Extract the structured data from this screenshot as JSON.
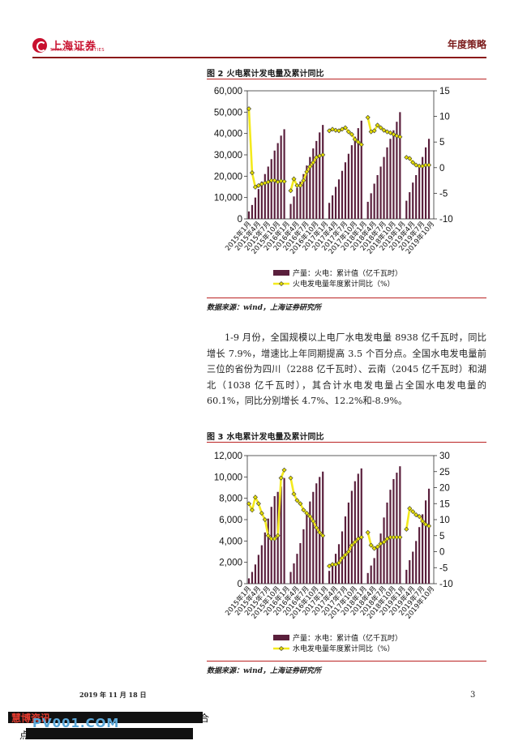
{
  "header": {
    "brand": "上海证券",
    "brand_en": "SHANGHAI SECURITIES",
    "doc_type": "年度策略"
  },
  "figures": [
    {
      "title_num": "图 2",
      "title": "火电累计发电量及累计同比",
      "source": "数据来源：wind，上海证券研究所",
      "legend": {
        "bar": "产量：火电：累计值（亿千瓦时）",
        "line": "火电发电量年度累计同比（%）"
      },
      "colors": {
        "bar": "#5a1f3c",
        "line": "#f4ea1e",
        "marker": "#e8e000"
      }
    },
    {
      "title_num": "图 3",
      "title": "水电累计发电量及累计同比",
      "source": "数据来源：wind，上海证券研究所",
      "legend": {
        "bar": "产量：水电：累计值（亿千瓦时）",
        "line": "水电发电量年度累计同比（%）"
      },
      "colors": {
        "bar": "#5a1f3c",
        "line": "#f4ea1e",
        "marker": "#e8e000"
      }
    }
  ],
  "body": {
    "paragraph": "1-9 月份，全国规模以上电厂水电发电量 8938 亿千瓦时，同比增长 7.9%，增速比上年同期提高 3.5 个百分点。全国水电发电量前三位的省份为四川（2288 亿千瓦时）、云南（2045 亿千瓦时）和湖北（1038 亿千瓦时），其合计水电发电量占全国水电发电量的 60.1%，同比分别增长 4.7%、12.2%和-8.9%。"
  },
  "footer": {
    "date": "2019 年 11 月 18 日",
    "page": "3"
  },
  "watermark": {
    "brand": "慧博资讯",
    "brand_tail": "合",
    "url": "PV001.COM",
    "point": "点"
  },
  "chart_data": [
    {
      "type": "bar",
      "x_tick_labels": [
        "2015年1月",
        "2015年4月",
        "2015年7月",
        "2015年10月",
        "2016年1月",
        "2016年4月",
        "2016年7月",
        "2016年10月",
        "2017年1月",
        "2017年4月",
        "2017年7月",
        "2017年10月",
        "2018年1月",
        "2018年4月",
        "2018年7月",
        "2018年10月",
        "2019年1月",
        "2019年4月",
        "2019年7月",
        "2019年10月"
      ],
      "x": [
        "2015-01",
        "2015-02",
        "2015-03",
        "2015-04",
        "2015-05",
        "2015-06",
        "2015-07",
        "2015-08",
        "2015-09",
        "2015-10",
        "2015-11",
        "2015-12",
        "2016-01",
        "2016-02",
        "2016-03",
        "2016-04",
        "2016-05",
        "2016-06",
        "2016-07",
        "2016-08",
        "2016-09",
        "2016-10",
        "2016-11",
        "2016-12",
        "2017-01",
        "2017-02",
        "2017-03",
        "2017-04",
        "2017-05",
        "2017-06",
        "2017-07",
        "2017-08",
        "2017-09",
        "2017-10",
        "2017-11",
        "2017-12",
        "2018-01",
        "2018-02",
        "2018-03",
        "2018-04",
        "2018-05",
        "2018-06",
        "2018-07",
        "2018-08",
        "2018-09",
        "2018-10",
        "2018-11",
        "2018-12",
        "2019-01",
        "2019-02",
        "2019-03",
        "2019-04",
        "2019-05",
        "2019-06",
        "2019-07",
        "2019-08",
        "2019-09",
        "2019-10"
      ],
      "series": [
        {
          "name": "产量：火电：累计值（亿千瓦时）",
          "axis": "left",
          "values": [
            3500,
            6500,
            10000,
            14000,
            17500,
            21000,
            24500,
            28000,
            32000,
            35500,
            39000,
            42000,
            null,
            7000,
            10500,
            14500,
            17500,
            21000,
            25000,
            29000,
            33000,
            36500,
            40500,
            44000,
            null,
            7500,
            11000,
            15000,
            18500,
            22500,
            26500,
            30500,
            34500,
            38500,
            42500,
            46000,
            null,
            8000,
            12000,
            16500,
            20500,
            24500,
            29000,
            33500,
            37500,
            41500,
            45500,
            50000,
            null,
            8500,
            12500,
            17000,
            20500,
            24500,
            29000,
            33500,
            37500,
            null
          ]
        },
        {
          "name": "火电发电量年度累计同比（%）",
          "axis": "right",
          "values": [
            11.5,
            -1,
            -3.8,
            -3.5,
            -3.2,
            -3,
            -2.8,
            -2.5,
            -2.5,
            -2.8,
            -2.6,
            -2.7,
            null,
            -4.5,
            -2.2,
            -3.5,
            -3.5,
            -2.5,
            -0.8,
            0.2,
            1,
            2,
            2.3,
            2.5,
            null,
            7.2,
            7.5,
            7.3,
            7.2,
            7.5,
            7.8,
            7,
            6.5,
            5.5,
            5,
            4.5,
            null,
            9.8,
            7,
            7.2,
            8.3,
            7.8,
            7.3,
            7,
            6.8,
            6.5,
            6.2,
            6,
            null,
            2,
            1.8,
            1,
            0.5,
            0.3,
            0.3,
            0.5,
            0.5,
            null
          ]
        }
      ],
      "y_left": {
        "ticks": [
          "0",
          "10,000",
          "20,000",
          "30,000",
          "40,000",
          "50,000",
          "60,000"
        ],
        "range": [
          0,
          60000
        ]
      },
      "y_right": {
        "ticks": [
          "-10",
          "-5",
          "0",
          "5",
          "10",
          "15"
        ],
        "range": [
          -10,
          15
        ]
      },
      "legend_position": "bottom"
    },
    {
      "type": "bar",
      "x_tick_labels": [
        "2015年1月",
        "2015年4月",
        "2015年7月",
        "2015年10月",
        "2016年1月",
        "2016年4月",
        "2016年7月",
        "2016年10月",
        "2017年1月",
        "2017年4月",
        "2017年7月",
        "2017年10月",
        "2018年1月",
        "2018年4月",
        "2018年7月",
        "2018年10月",
        "2019年1月",
        "2019年4月",
        "2019年7月",
        "2019年10月"
      ],
      "x": [
        "2015-01",
        "2015-02",
        "2015-03",
        "2015-04",
        "2015-05",
        "2015-06",
        "2015-07",
        "2015-08",
        "2015-09",
        "2015-10",
        "2015-11",
        "2015-12",
        "2016-01",
        "2016-02",
        "2016-03",
        "2016-04",
        "2016-05",
        "2016-06",
        "2016-07",
        "2016-08",
        "2016-09",
        "2016-10",
        "2016-11",
        "2016-12",
        "2017-01",
        "2017-02",
        "2017-03",
        "2017-04",
        "2017-05",
        "2017-06",
        "2017-07",
        "2017-08",
        "2017-09",
        "2017-10",
        "2017-11",
        "2017-12",
        "2018-01",
        "2018-02",
        "2018-03",
        "2018-04",
        "2018-05",
        "2018-06",
        "2018-07",
        "2018-08",
        "2018-09",
        "2018-10",
        "2018-11",
        "2018-12",
        "2019-01",
        "2019-02",
        "2019-03",
        "2019-04",
        "2019-05",
        "2019-06",
        "2019-07",
        "2019-08",
        "2019-09",
        "2019-10"
      ],
      "series": [
        {
          "name": "产量：水电：累计值（亿千瓦时）",
          "axis": "left",
          "values": [
            500,
            1100,
            1800,
            2700,
            3600,
            4800,
            6100,
            7200,
            8200,
            8600,
            9100,
            9900,
            null,
            1100,
            1900,
            2800,
            3800,
            5100,
            6500,
            7700,
            8600,
            9400,
            10000,
            10500,
            null,
            1200,
            1900,
            2800,
            3700,
            4900,
            6300,
            7600,
            8700,
            9600,
            10300,
            10800,
            null,
            1000,
            1700,
            2400,
            3300,
            4700,
            6200,
            7600,
            8800,
            9800,
            10400,
            11000,
            null,
            1300,
            2200,
            3000,
            4000,
            5300,
            6500,
            7800,
            8900,
            null
          ]
        },
        {
          "name": "水电发电量年度累计同比（%）",
          "axis": "right",
          "values": [
            15,
            13,
            17,
            15,
            12,
            10,
            5,
            4,
            4,
            5,
            23,
            25.5,
            null,
            23,
            18,
            16,
            15,
            13,
            12,
            11,
            9.5,
            7.5,
            6,
            5,
            null,
            -4.5,
            -4,
            -4,
            -3.5,
            -2,
            -1,
            0,
            2,
            3,
            4,
            4.5,
            null,
            6,
            2,
            1,
            1.5,
            2.5,
            3,
            4,
            4.5,
            4.5,
            4.5,
            4.5,
            null,
            7,
            13.5,
            12.5,
            11.5,
            11,
            9.5,
            8.5,
            8,
            null
          ]
        }
      ],
      "y_left": {
        "ticks": [
          "0",
          "2,000",
          "4,000",
          "6,000",
          "8,000",
          "10,000",
          "12,000"
        ],
        "range": [
          0,
          12000
        ]
      },
      "y_right": {
        "ticks": [
          "-10",
          "-5",
          "0",
          "5",
          "10",
          "15",
          "20",
          "25",
          "30"
        ],
        "range": [
          -10,
          30
        ]
      },
      "legend_position": "bottom"
    }
  ]
}
